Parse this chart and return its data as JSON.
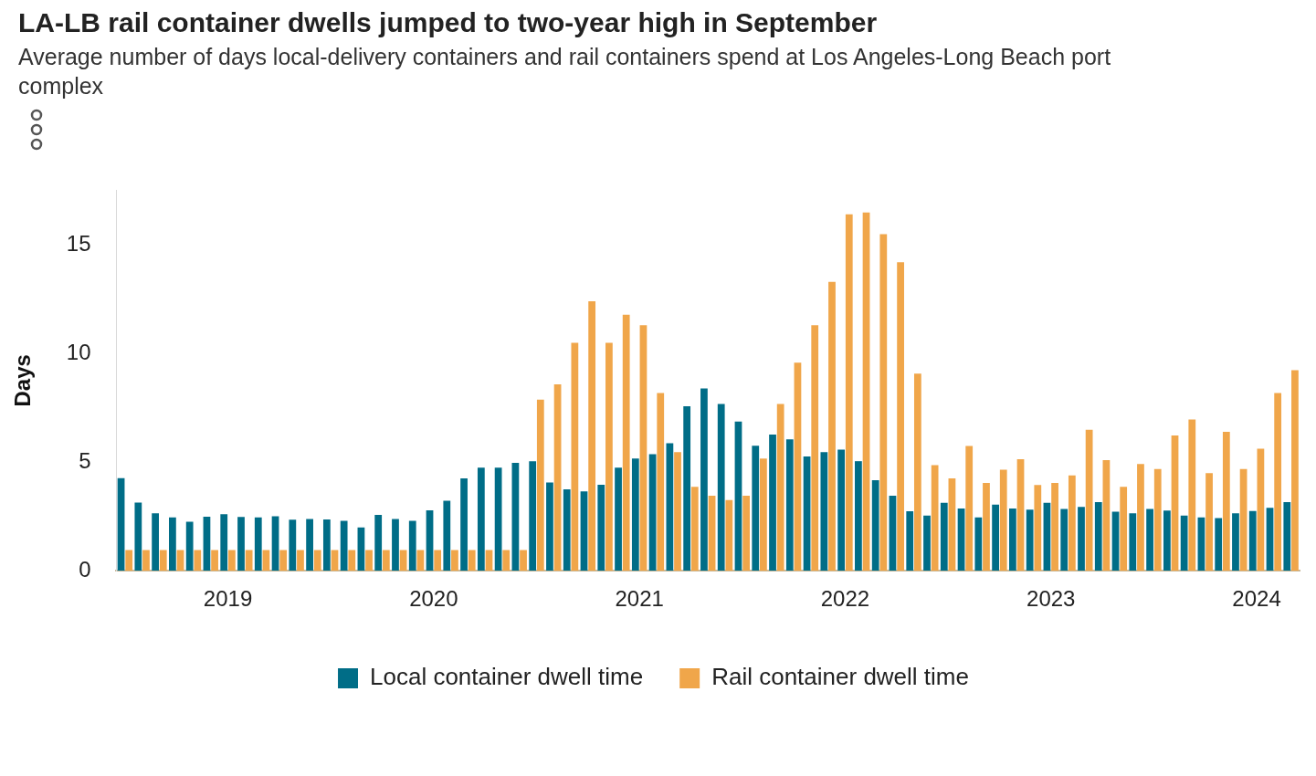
{
  "chart_data": {
    "type": "bar",
    "title": "LA-LB rail container dwells jumped to two-year high in September",
    "subtitle": "Average number of days local-delivery containers and rail containers spend at Los Angeles-Long Beach port complex",
    "ylabel": "Days",
    "categories": [
      null,
      null,
      null,
      null,
      null,
      null,
      "2019",
      null,
      null,
      null,
      null,
      null,
      null,
      null,
      null,
      null,
      null,
      null,
      "2020",
      null,
      null,
      null,
      null,
      null,
      null,
      null,
      null,
      null,
      null,
      null,
      "2021",
      null,
      null,
      null,
      null,
      null,
      null,
      null,
      null,
      null,
      null,
      null,
      "2022",
      null,
      null,
      null,
      null,
      null,
      null,
      null,
      null,
      null,
      null,
      null,
      "2023",
      null,
      null,
      null,
      null,
      null,
      null,
      null,
      null,
      null,
      null,
      null,
      "2024",
      null,
      null
    ],
    "series": [
      {
        "name": "Local container dwell time",
        "color": "#006d87",
        "values": [
          4.26,
          3.14,
          2.64,
          2.45,
          2.25,
          2.49,
          2.6,
          2.48,
          2.45,
          2.51,
          2.35,
          2.38,
          2.36,
          2.3,
          1.99,
          2.57,
          2.38,
          2.3,
          2.78,
          3.22,
          4.25,
          4.74,
          4.74,
          4.96,
          5.04,
          4.06,
          3.74,
          3.65,
          3.96,
          4.74,
          5.16,
          5.36,
          5.87,
          7.57,
          8.38,
          7.67,
          6.86,
          5.75,
          6.26,
          6.04,
          5.26,
          5.46,
          5.57,
          5.04,
          4.16,
          3.45,
          2.74,
          2.54,
          3.13,
          2.86,
          2.45,
          3.04,
          2.86,
          2.81,
          3.13,
          2.84,
          2.94,
          3.16,
          2.72,
          2.64,
          2.84,
          2.77,
          2.54,
          2.45,
          2.42,
          2.64,
          2.75,
          2.9,
          3.16
        ]
      },
      {
        "name": "Rail container dwell time",
        "color": "#f0a64a",
        "values": [
          0.95,
          0.95,
          0.95,
          0.95,
          0.95,
          0.95,
          0.95,
          0.95,
          0.95,
          0.95,
          0.95,
          0.95,
          0.95,
          0.95,
          0.95,
          0.95,
          0.95,
          0.95,
          0.95,
          0.95,
          0.95,
          0.95,
          0.95,
          0.95,
          7.87,
          8.57,
          10.48,
          12.39,
          10.48,
          11.78,
          11.29,
          8.17,
          5.46,
          3.86,
          3.45,
          3.25,
          3.45,
          5.16,
          7.67,
          9.57,
          11.29,
          13.29,
          16.39,
          16.48,
          15.48,
          14.19,
          9.07,
          4.86,
          4.25,
          5.74,
          4.04,
          4.65,
          5.13,
          3.94,
          4.04,
          4.39,
          6.49,
          5.09,
          3.86,
          4.91,
          4.68,
          6.22,
          6.96,
          4.49,
          6.39,
          4.68,
          5.61,
          8.17,
          9.22
        ]
      }
    ],
    "ylim": [
      0,
      17.5
    ],
    "yticks": [
      0,
      5,
      10,
      15
    ],
    "grid": false,
    "legend": "bottom"
  }
}
